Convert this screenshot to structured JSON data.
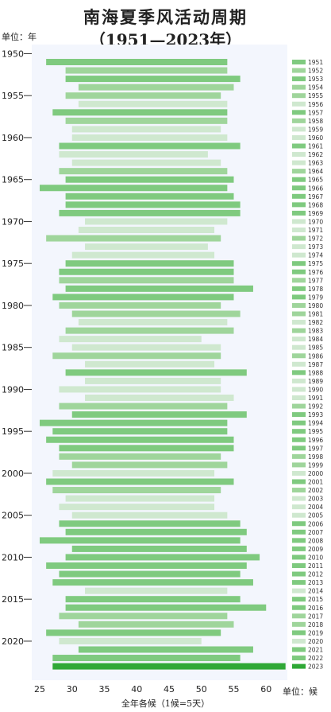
{
  "title_line1": "南海夏季风活动周期",
  "title_line2": "（1951—2023年）",
  "y_unit": "单位：年",
  "x_unit": "单位：候",
  "x_label": "全年各候（1候=5天）",
  "chart_data": {
    "type": "bar",
    "orientation": "horizontal-range",
    "title": "南海夏季风活动周期（1951—2023年）",
    "xlabel": "全年各候（1候=5天）",
    "ylabel": "单位：年",
    "xlim": [
      24,
      65
    ],
    "x_ticks": [
      25,
      30,
      35,
      40,
      45,
      50,
      55,
      60
    ],
    "y_tick_years": [
      1950,
      1955,
      1960,
      1965,
      1970,
      1975,
      1980,
      1985,
      1990,
      1995,
      2000,
      2005,
      2010,
      2015,
      2020
    ],
    "legend_position": "right",
    "colors": {
      "light": "#cfe8cf",
      "medium": "#9fd59b",
      "green": "#7fca7f",
      "dark": "#2fa836",
      "background": "#f3f6fd"
    },
    "series": [
      {
        "year": 1951,
        "start": 26,
        "end": 54,
        "shade": "green"
      },
      {
        "year": 1952,
        "start": 29,
        "end": 54,
        "shade": "medium"
      },
      {
        "year": 1953,
        "start": 29,
        "end": 56,
        "shade": "green"
      },
      {
        "year": 1954,
        "start": 31,
        "end": 55,
        "shade": "medium"
      },
      {
        "year": 1955,
        "start": 29,
        "end": 53,
        "shade": "medium"
      },
      {
        "year": 1956,
        "start": 31,
        "end": 54,
        "shade": "light"
      },
      {
        "year": 1957,
        "start": 27,
        "end": 54,
        "shade": "green"
      },
      {
        "year": 1958,
        "start": 29,
        "end": 54,
        "shade": "medium"
      },
      {
        "year": 1959,
        "start": 30,
        "end": 53,
        "shade": "light"
      },
      {
        "year": 1960,
        "start": 30,
        "end": 54,
        "shade": "light"
      },
      {
        "year": 1961,
        "start": 28,
        "end": 56,
        "shade": "green"
      },
      {
        "year": 1962,
        "start": 28,
        "end": 51,
        "shade": "light"
      },
      {
        "year": 1963,
        "start": 30,
        "end": 53,
        "shade": "light"
      },
      {
        "year": 1964,
        "start": 28,
        "end": 54,
        "shade": "medium"
      },
      {
        "year": 1965,
        "start": 29,
        "end": 55,
        "shade": "green"
      },
      {
        "year": 1966,
        "start": 25,
        "end": 54,
        "shade": "green"
      },
      {
        "year": 1967,
        "start": 29,
        "end": 55,
        "shade": "green"
      },
      {
        "year": 1968,
        "start": 29,
        "end": 56,
        "shade": "green"
      },
      {
        "year": 1969,
        "start": 28,
        "end": 56,
        "shade": "green"
      },
      {
        "year": 1970,
        "start": 32,
        "end": 54,
        "shade": "light"
      },
      {
        "year": 1971,
        "start": 31,
        "end": 52,
        "shade": "light"
      },
      {
        "year": 1972,
        "start": 26,
        "end": 53,
        "shade": "medium"
      },
      {
        "year": 1973,
        "start": 32,
        "end": 51,
        "shade": "light"
      },
      {
        "year": 1974,
        "start": 30,
        "end": 52,
        "shade": "light"
      },
      {
        "year": 1975,
        "start": 29,
        "end": 55,
        "shade": "green"
      },
      {
        "year": 1976,
        "start": 28,
        "end": 55,
        "shade": "green"
      },
      {
        "year": 1977,
        "start": 28,
        "end": 55,
        "shade": "medium"
      },
      {
        "year": 1978,
        "start": 29,
        "end": 58,
        "shade": "green"
      },
      {
        "year": 1979,
        "start": 27,
        "end": 55,
        "shade": "green"
      },
      {
        "year": 1980,
        "start": 28,
        "end": 53,
        "shade": "medium"
      },
      {
        "year": 1981,
        "start": 30,
        "end": 56,
        "shade": "medium"
      },
      {
        "year": 1982,
        "start": 31,
        "end": 54,
        "shade": "light"
      },
      {
        "year": 1983,
        "start": 29,
        "end": 55,
        "shade": "medium"
      },
      {
        "year": 1984,
        "start": 28,
        "end": 50,
        "shade": "light"
      },
      {
        "year": 1985,
        "start": 30,
        "end": 53,
        "shade": "light"
      },
      {
        "year": 1986,
        "start": 27,
        "end": 53,
        "shade": "medium"
      },
      {
        "year": 1987,
        "start": 32,
        "end": 52,
        "shade": "light"
      },
      {
        "year": 1988,
        "start": 29,
        "end": 57,
        "shade": "green"
      },
      {
        "year": 1989,
        "start": 32,
        "end": 53,
        "shade": "light"
      },
      {
        "year": 1990,
        "start": 28,
        "end": 53,
        "shade": "light"
      },
      {
        "year": 1991,
        "start": 32,
        "end": 55,
        "shade": "light"
      },
      {
        "year": 1992,
        "start": 28,
        "end": 54,
        "shade": "medium"
      },
      {
        "year": 1993,
        "start": 30,
        "end": 57,
        "shade": "green"
      },
      {
        "year": 1994,
        "start": 25,
        "end": 54,
        "shade": "green"
      },
      {
        "year": 1995,
        "start": 27,
        "end": 54,
        "shade": "green"
      },
      {
        "year": 1996,
        "start": 26,
        "end": 55,
        "shade": "green"
      },
      {
        "year": 1997,
        "start": 28,
        "end": 55,
        "shade": "green"
      },
      {
        "year": 1998,
        "start": 28,
        "end": 53,
        "shade": "medium"
      },
      {
        "year": 1999,
        "start": 30,
        "end": 54,
        "shade": "medium"
      },
      {
        "year": 2000,
        "start": 27,
        "end": 52,
        "shade": "light"
      },
      {
        "year": 2001,
        "start": 26,
        "end": 55,
        "shade": "green"
      },
      {
        "year": 2002,
        "start": 27,
        "end": 53,
        "shade": "medium"
      },
      {
        "year": 2003,
        "start": 29,
        "end": 52,
        "shade": "light"
      },
      {
        "year": 2004,
        "start": 28,
        "end": 52,
        "shade": "light"
      },
      {
        "year": 2005,
        "start": 30,
        "end": 54,
        "shade": "light"
      },
      {
        "year": 2006,
        "start": 28,
        "end": 56,
        "shade": "green"
      },
      {
        "year": 2007,
        "start": 29,
        "end": 57,
        "shade": "green"
      },
      {
        "year": 2008,
        "start": 25,
        "end": 56,
        "shade": "green"
      },
      {
        "year": 2009,
        "start": 30,
        "end": 57,
        "shade": "green"
      },
      {
        "year": 2010,
        "start": 29,
        "end": 59,
        "shade": "green"
      },
      {
        "year": 2011,
        "start": 26,
        "end": 57,
        "shade": "green"
      },
      {
        "year": 2012,
        "start": 28,
        "end": 56,
        "shade": "green"
      },
      {
        "year": 2013,
        "start": 27,
        "end": 58,
        "shade": "green"
      },
      {
        "year": 2014,
        "start": 32,
        "end": 54,
        "shade": "light"
      },
      {
        "year": 2015,
        "start": 29,
        "end": 56,
        "shade": "green"
      },
      {
        "year": 2016,
        "start": 29,
        "end": 60,
        "shade": "green"
      },
      {
        "year": 2017,
        "start": 28,
        "end": 54,
        "shade": "medium"
      },
      {
        "year": 2018,
        "start": 31,
        "end": 55,
        "shade": "medium"
      },
      {
        "year": 2019,
        "start": 26,
        "end": 53,
        "shade": "green"
      },
      {
        "year": 2020,
        "start": 28,
        "end": 50,
        "shade": "light"
      },
      {
        "year": 2021,
        "start": 31,
        "end": 58,
        "shade": "green"
      },
      {
        "year": 2022,
        "start": 27,
        "end": 56,
        "shade": "green"
      },
      {
        "year": 2023,
        "start": 27,
        "end": 63,
        "shade": "dark"
      }
    ]
  }
}
